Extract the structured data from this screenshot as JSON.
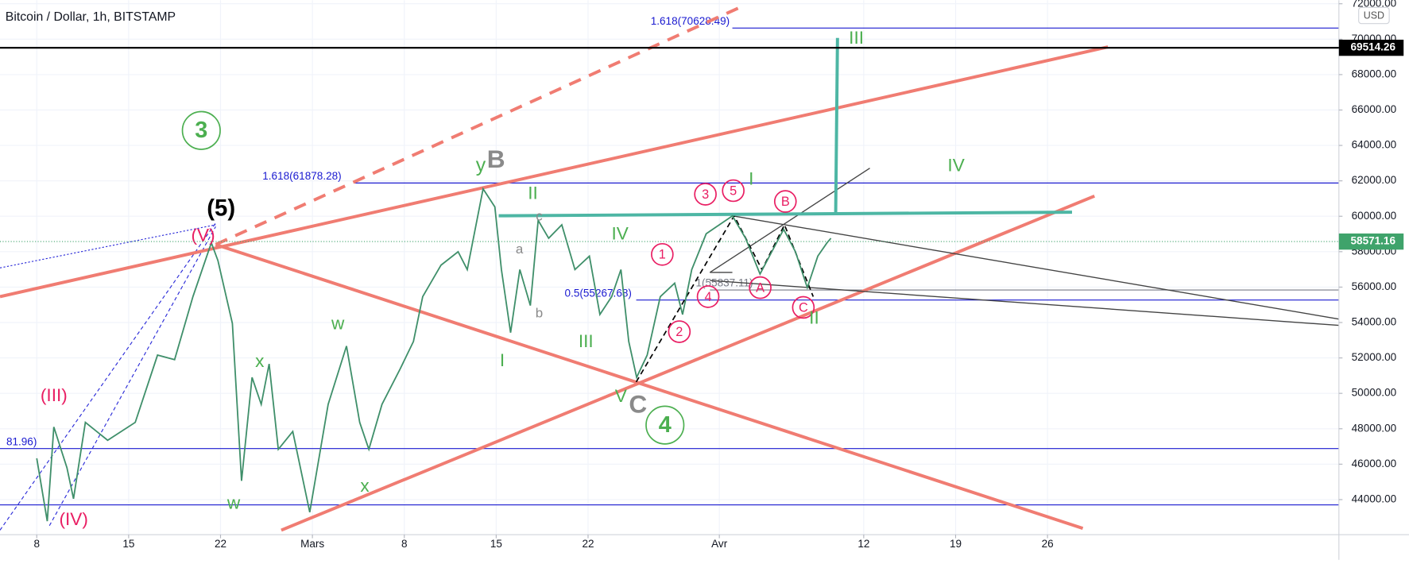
{
  "chart_data": {
    "type": "line",
    "title": "Bitcoin / Dollar, 1h, BITSTAMP",
    "currency": "USD",
    "series": [
      {
        "name": "BTCUSD",
        "color": "#3f8f6a",
        "x": [
          0.0,
          0.8,
          1.3,
          2.3,
          2.8,
          3.7,
          5.4,
          7.5,
          9.2,
          10.5,
          11.9,
          13.3,
          13.8,
          14.9,
          15.6,
          16.4,
          17.1,
          17.7,
          18.4,
          19.5,
          20.8,
          22.2,
          23.6,
          24.6,
          25.3,
          26.3,
          27.7,
          28.7,
          29.4,
          30.8,
          32.1,
          32.8,
          34.0,
          34.9,
          35.4,
          36.1,
          36.8,
          37.6,
          38.2,
          39.0,
          40.0,
          41.0,
          42.1,
          42.9,
          43.8,
          44.5,
          45.1,
          45.7,
          46.5,
          47.5,
          48.6,
          49.2,
          49.9,
          51.0,
          52.0,
          53.0,
          54.0,
          55.1,
          56.0,
          56.9,
          57.8,
          58.7,
          59.5,
          60.2,
          60.5
        ],
        "values": [
          46330,
          42780,
          48100,
          45800,
          44050,
          48360,
          47350,
          48360,
          52160,
          51900,
          55460,
          58500,
          57500,
          53950,
          45060,
          50900,
          49380,
          51660,
          46840,
          47850,
          43290,
          49380,
          52670,
          48360,
          46840,
          49380,
          51400,
          52930,
          55460,
          57240,
          58000,
          56990,
          61550,
          60530,
          56990,
          53430,
          56990,
          54960,
          59770,
          58760,
          59520,
          56990,
          57750,
          54450,
          55460,
          56990,
          52930,
          50900,
          52160,
          55460,
          56220,
          54450,
          56990,
          59010,
          59520,
          60020,
          58760,
          56740,
          58000,
          59260,
          58000,
          55970,
          57750,
          58500,
          58760
        ]
      }
    ],
    "levels": [
      {
        "value": 70628.49,
        "label": "1.618(70628.49)",
        "color": "#1a1ad0"
      },
      {
        "value": 61878.28,
        "label": "1.618(61878.28)",
        "color": "#1a1ad0"
      },
      {
        "value": 55267.68,
        "label": "0.5(55267.68)",
        "color": "#1a1ad0"
      },
      {
        "value": 55837.11,
        "label": "1(55837.11)",
        "color": "#787b86"
      },
      {
        "value": 46881.96,
        "label": "81.96)",
        "color": "#1a1ad0"
      },
      {
        "value": 43700,
        "color": "#1a1ad0"
      }
    ],
    "price_badges": [
      {
        "value": 69514.26,
        "label": "69514.26",
        "color": "#000000"
      },
      {
        "value": 58571.16,
        "label": "58571.16",
        "color": "#3fa36b"
      }
    ],
    "annotations": [
      "3",
      "(5)",
      "(V)",
      "(III)",
      "(IV)",
      "x",
      "w",
      "w",
      "x",
      "y",
      "B",
      "II",
      "c",
      "a",
      "b",
      "I",
      "IV",
      "III",
      "V",
      "C",
      "4",
      "1",
      "2",
      "3",
      "5",
      "4",
      "A",
      "B",
      "C",
      "I",
      "II",
      "III",
      "IV"
    ],
    "xlim": [
      -2.8,
      99.2
    ],
    "xticks": [
      {
        "value": 0,
        "label": "8"
      },
      {
        "value": 7,
        "label": "15"
      },
      {
        "value": 14,
        "label": "22"
      },
      {
        "value": 21,
        "label": "Mars"
      },
      {
        "value": 28,
        "label": "8"
      },
      {
        "value": 35,
        "label": "15"
      },
      {
        "value": 42,
        "label": "22"
      },
      {
        "value": 52,
        "label": "Avr"
      },
      {
        "value": 63,
        "label": "12"
      },
      {
        "value": 70,
        "label": "19"
      },
      {
        "value": 77,
        "label": "26"
      }
    ],
    "ylim": [
      42020,
      72200
    ],
    "yticks": [
      {
        "value": 44000,
        "label": "44000.00"
      },
      {
        "value": 46000,
        "label": "46000.00"
      },
      {
        "value": 48000,
        "label": "48000.00"
      },
      {
        "value": 50000,
        "label": "50000.00"
      },
      {
        "value": 52000,
        "label": "52000.00"
      },
      {
        "value": 54000,
        "label": "54000.00"
      },
      {
        "value": 56000,
        "label": "56000.00"
      },
      {
        "value": 58000,
        "label": "58000.00"
      },
      {
        "value": 60000,
        "label": "60000.00"
      },
      {
        "value": 62000,
        "label": "62000.00"
      },
      {
        "value": 64000,
        "label": "64000.00"
      },
      {
        "value": 66000,
        "label": "66000.00"
      },
      {
        "value": 68000,
        "label": "68000.00"
      },
      {
        "value": 70000,
        "label": "70000.00"
      },
      {
        "value": 72000,
        "label": "72000.00"
      }
    ],
    "grid": true
  }
}
